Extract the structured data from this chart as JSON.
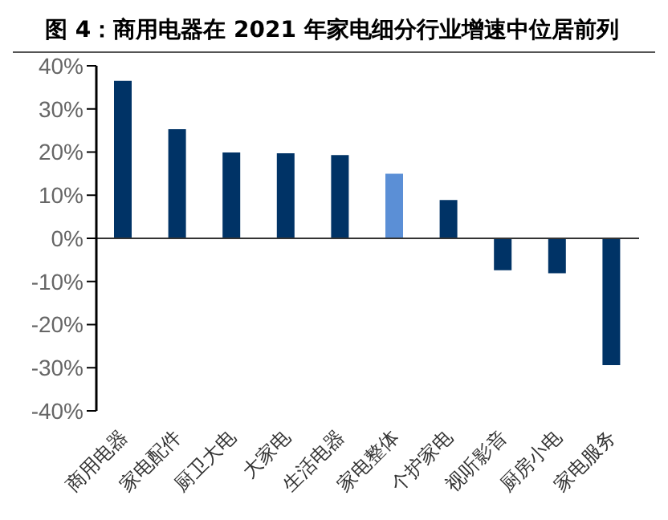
{
  "chart_data": {
    "type": "bar",
    "title": "图 4：商用电器在 2021 年家电细分行业增速中位居前列",
    "categories": [
      "商用电器",
      "家电配件",
      "厨卫大电",
      "大家电",
      "生活电器",
      "家电整体",
      "个护家电",
      "视听影音",
      "厨房小电",
      "家电服务"
    ],
    "values": [
      36.5,
      25.3,
      19.9,
      19.7,
      19.3,
      15,
      8.9,
      -7.4,
      -8.1,
      -29.4
    ],
    "colors": [
      "#003366",
      "#003366",
      "#003366",
      "#003366",
      "#003366",
      "#5b8fd6",
      "#003366",
      "#003366",
      "#003366",
      "#003366"
    ],
    "ylim": [
      -40,
      40
    ],
    "yticks": [
      {
        "value": -40,
        "label": "-40%"
      },
      {
        "value": -30,
        "label": "-30%"
      },
      {
        "value": -20,
        "label": "-20%"
      },
      {
        "value": -10,
        "label": "-10%"
      },
      {
        "value": 0,
        "label": "0%"
      },
      {
        "value": 10,
        "label": "10%"
      },
      {
        "value": 20,
        "label": "20%"
      },
      {
        "value": 30,
        "label": "30%"
      },
      {
        "value": 40,
        "label": "40%"
      }
    ],
    "ref_lines": [
      {
        "axis": "y",
        "value": 0,
        "color": "#333333"
      }
    ]
  }
}
